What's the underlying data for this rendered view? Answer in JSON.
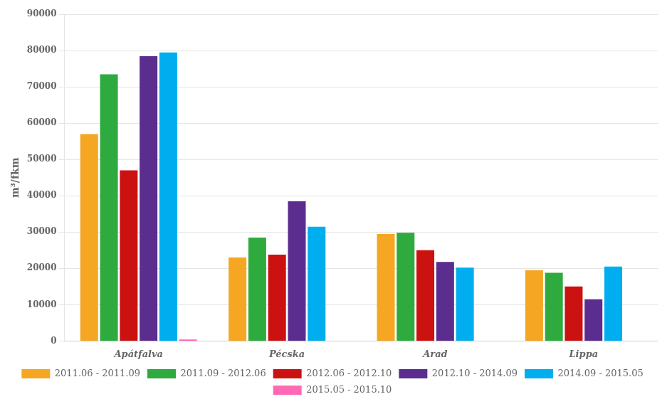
{
  "chart_data": {
    "type": "bar",
    "categories": [
      "Apátfalva",
      "Pécska",
      "Arad",
      "Lippa"
    ],
    "series": [
      {
        "name": "2011.06 - 2011.09",
        "color": "#F5A623",
        "values": [
          57000,
          23000,
          29500,
          19500
        ]
      },
      {
        "name": "2011.09 - 2012.06",
        "color": "#2EAA3F",
        "values": [
          73500,
          28500,
          29800,
          18800
        ]
      },
      {
        "name": "2012.06 - 2012.10",
        "color": "#CC1111",
        "values": [
          47000,
          23800,
          25000,
          15000
        ]
      },
      {
        "name": "2012.10 - 2014.09",
        "color": "#5B2D8E",
        "values": [
          78500,
          38500,
          21800,
          11500
        ]
      },
      {
        "name": "2014.09 - 2015.05",
        "color": "#00AEEF",
        "values": [
          79500,
          31500,
          20200,
          20500
        ]
      },
      {
        "name": "2015.05 - 2015.10",
        "color": "#FF69B4",
        "values": [
          400,
          0,
          0,
          0
        ]
      }
    ],
    "ylabel": "m³/fkm",
    "ylim": [
      0,
      90000
    ],
    "yticks": [
      0,
      10000,
      20000,
      30000,
      40000,
      50000,
      60000,
      70000,
      80000,
      90000
    ],
    "grid": true,
    "legend": "bottom"
  }
}
